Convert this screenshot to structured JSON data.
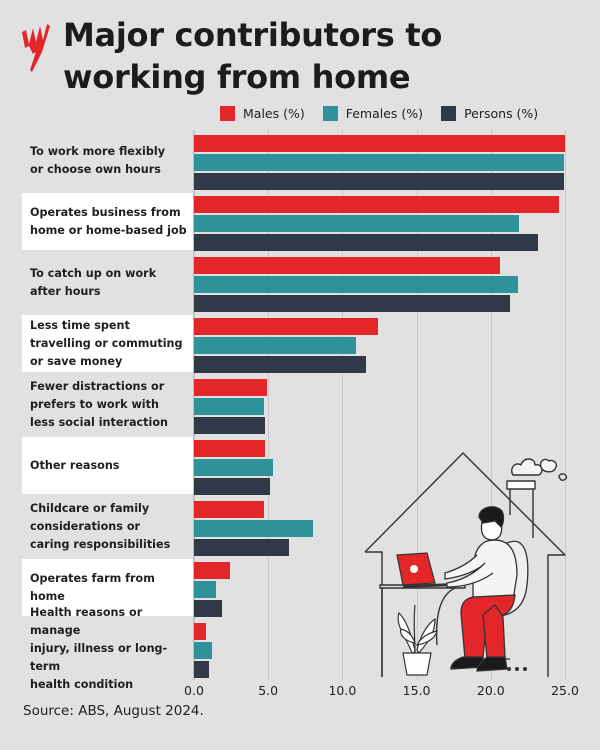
{
  "header": {
    "title": "Major contributors to working from home",
    "logo": "sbs-logo-icon"
  },
  "legend": {
    "items": [
      {
        "label": "Males (%)",
        "color": "#e3262a"
      },
      {
        "label": "Females (%)",
        "color": "#2f9199"
      },
      {
        "label": "Persons (%)",
        "color": "#313847"
      }
    ]
  },
  "colors": {
    "background": "#e1e1e1",
    "band_white": "#ffffff",
    "males": "#e3262a",
    "females": "#2f9199",
    "persons": "#313847"
  },
  "axis": {
    "ticks": [
      "0.0",
      "5.0",
      "10.0",
      "15.0",
      "20.0",
      "25.0"
    ]
  },
  "source": "Source: ABS, August 2024.",
  "chart_data": {
    "type": "bar",
    "orientation": "horizontal",
    "title": "Major contributors to working from home",
    "xlabel": "",
    "ylabel": "",
    "xlim": [
      0,
      25
    ],
    "grid": true,
    "legend_position": "top-right",
    "categories": [
      "To work more flexibly or choose own hours",
      "Operates business from home or home-based job",
      "To catch up on work after hours",
      "Less time spent travelling or commuting or save money",
      "Fewer distractions or prefers to work with less social interaction",
      "Other reasons",
      "Childcare or family considerations or caring responsibilities",
      "Operates farm from home",
      "Health reasons or manage injury, illness or long-term health condition"
    ],
    "category_lines": [
      [
        "To work more flexibly",
        "or choose own hours"
      ],
      [
        "Operates business from",
        "home or home-based job"
      ],
      [
        "To catch up on work",
        "after hours"
      ],
      [
        "Less time spent",
        "travelling or commuting",
        "or save money"
      ],
      [
        "Fewer distractions or",
        "prefers to work with",
        "less social interaction"
      ],
      [
        "Other reasons"
      ],
      [
        "Childcare or family",
        "considerations or",
        "caring responsibilities"
      ],
      [
        "Operates farm from home"
      ],
      [
        "Health reasons or manage",
        "injury, illness or long-term",
        "health condition"
      ]
    ],
    "series": [
      {
        "name": "Males (%)",
        "values": [
          25.0,
          24.6,
          20.6,
          12.4,
          4.9,
          4.8,
          4.7,
          2.4,
          0.8
        ]
      },
      {
        "name": "Females (%)",
        "values": [
          24.9,
          21.9,
          21.8,
          10.9,
          4.7,
          5.3,
          8.0,
          1.5,
          1.2
        ]
      },
      {
        "name": "Persons (%)",
        "values": [
          24.9,
          23.2,
          21.3,
          11.6,
          4.8,
          5.1,
          6.4,
          1.9,
          1.0
        ]
      }
    ],
    "source": "Source: ABS, August 2024."
  }
}
